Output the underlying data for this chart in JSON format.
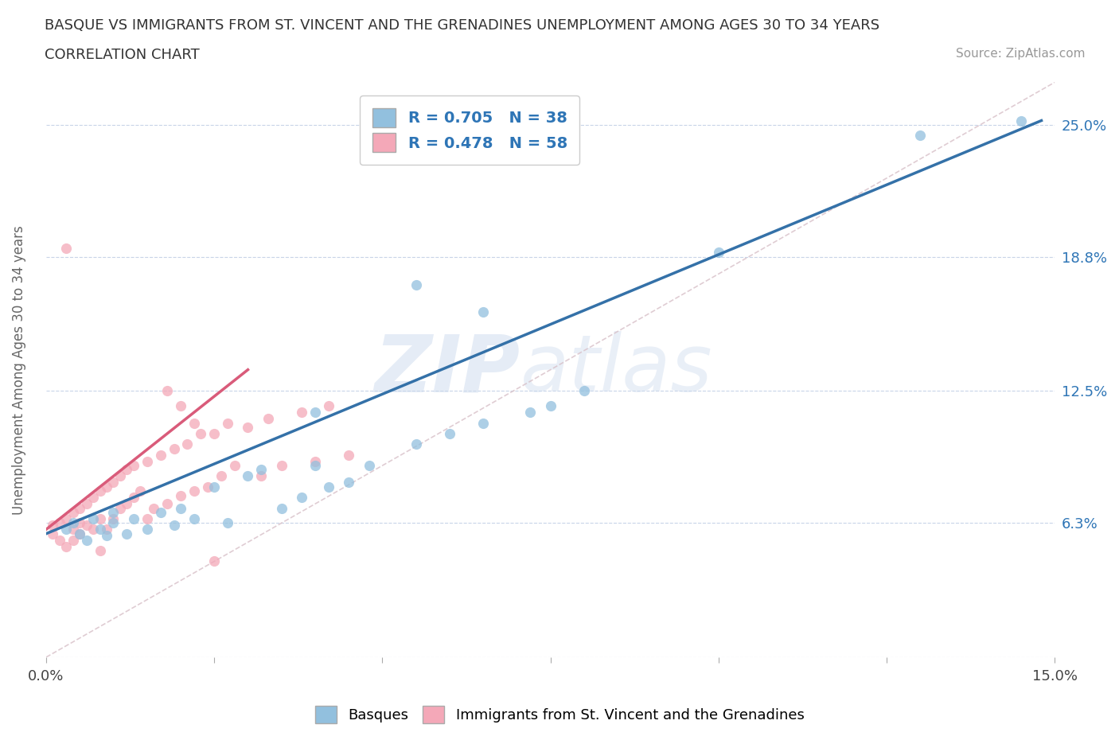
{
  "title_line1": "BASQUE VS IMMIGRANTS FROM ST. VINCENT AND THE GRENADINES UNEMPLOYMENT AMONG AGES 30 TO 34 YEARS",
  "title_line2": "CORRELATION CHART",
  "source": "Source: ZipAtlas.com",
  "ylabel": "Unemployment Among Ages 30 to 34 years",
  "xmin": 0.0,
  "xmax": 0.15,
  "ymin": 0.0,
  "ymax": 0.27,
  "yticks": [
    0.0,
    0.063,
    0.125,
    0.188,
    0.25
  ],
  "ytick_labels": [
    "",
    "6.3%",
    "12.5%",
    "18.8%",
    "25.0%"
  ],
  "xticks": [
    0.0,
    0.025,
    0.05,
    0.075,
    0.1,
    0.125,
    0.15
  ],
  "xtick_labels": [
    "0.0%",
    "",
    "",
    "",
    "",
    "",
    "15.0%"
  ],
  "blue_R": 0.705,
  "blue_N": 38,
  "pink_R": 0.478,
  "pink_N": 58,
  "blue_color": "#92C0DE",
  "pink_color": "#F4A8B8",
  "blue_line_color": "#3471A8",
  "pink_line_color": "#D95B7A",
  "ref_line_color": "#D8C0C8",
  "legend_R_color": "#2e75b6",
  "grid_color": "#C8D4E8",
  "background_color": "#ffffff",
  "watermark_text": "ZIPatlas",
  "blue_line_x": [
    0.0,
    0.148
  ],
  "blue_line_y": [
    0.058,
    0.252
  ],
  "pink_line_x": [
    0.0,
    0.03
  ],
  "pink_line_y": [
    0.06,
    0.135
  ],
  "ref_line_x": [
    0.0,
    0.15
  ],
  "ref_line_y": [
    0.0,
    0.27
  ],
  "blue_scatter_x": [
    0.003,
    0.004,
    0.005,
    0.006,
    0.007,
    0.008,
    0.009,
    0.01,
    0.01,
    0.012,
    0.013,
    0.015,
    0.017,
    0.019,
    0.02,
    0.022,
    0.025,
    0.027,
    0.03,
    0.032,
    0.035,
    0.038,
    0.04,
    0.042,
    0.045,
    0.048,
    0.055,
    0.06,
    0.065,
    0.072,
    0.075,
    0.08,
    0.055,
    0.065,
    0.13,
    0.145,
    0.1,
    0.04
  ],
  "blue_scatter_y": [
    0.06,
    0.063,
    0.058,
    0.055,
    0.065,
    0.06,
    0.057,
    0.063,
    0.068,
    0.058,
    0.065,
    0.06,
    0.068,
    0.062,
    0.07,
    0.065,
    0.08,
    0.063,
    0.085,
    0.088,
    0.07,
    0.075,
    0.09,
    0.08,
    0.082,
    0.09,
    0.1,
    0.105,
    0.11,
    0.115,
    0.118,
    0.125,
    0.175,
    0.162,
    0.245,
    0.252,
    0.19,
    0.115
  ],
  "pink_scatter_x": [
    0.001,
    0.001,
    0.002,
    0.002,
    0.003,
    0.003,
    0.004,
    0.004,
    0.004,
    0.005,
    0.005,
    0.005,
    0.006,
    0.006,
    0.007,
    0.007,
    0.008,
    0.008,
    0.009,
    0.009,
    0.01,
    0.01,
    0.011,
    0.011,
    0.012,
    0.012,
    0.013,
    0.013,
    0.014,
    0.015,
    0.015,
    0.016,
    0.017,
    0.018,
    0.019,
    0.02,
    0.021,
    0.022,
    0.023,
    0.024,
    0.025,
    0.026,
    0.027,
    0.028,
    0.03,
    0.032,
    0.033,
    0.035,
    0.038,
    0.04,
    0.042,
    0.045,
    0.003,
    0.018,
    0.02,
    0.022,
    0.008,
    0.025
  ],
  "pink_scatter_y": [
    0.058,
    0.062,
    0.055,
    0.063,
    0.052,
    0.065,
    0.06,
    0.068,
    0.055,
    0.063,
    0.07,
    0.058,
    0.062,
    0.072,
    0.06,
    0.075,
    0.065,
    0.078,
    0.06,
    0.08,
    0.065,
    0.082,
    0.07,
    0.085,
    0.072,
    0.088,
    0.075,
    0.09,
    0.078,
    0.065,
    0.092,
    0.07,
    0.095,
    0.072,
    0.098,
    0.076,
    0.1,
    0.078,
    0.105,
    0.08,
    0.105,
    0.085,
    0.11,
    0.09,
    0.108,
    0.085,
    0.112,
    0.09,
    0.115,
    0.092,
    0.118,
    0.095,
    0.192,
    0.125,
    0.118,
    0.11,
    0.05,
    0.045
  ]
}
